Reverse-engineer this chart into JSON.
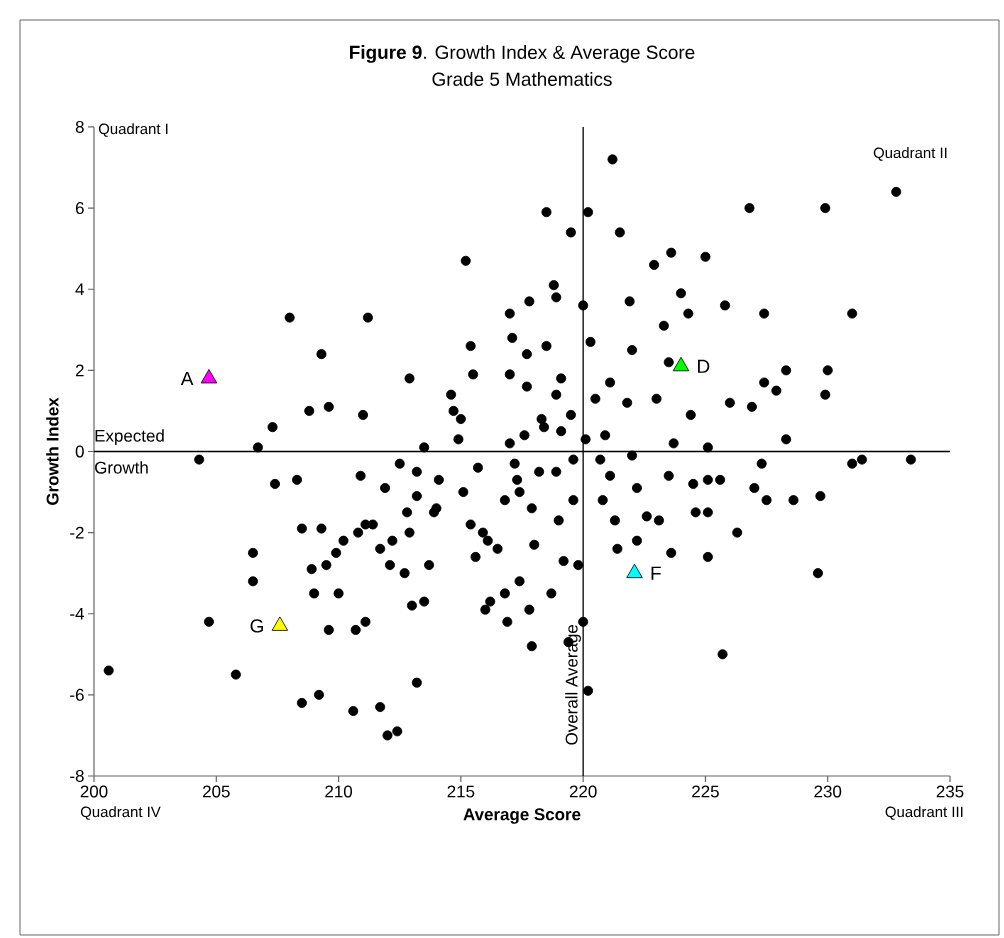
{
  "chart_data": {
    "type": "scatter",
    "title": "**Figure 9**. Growth Index & Average Score",
    "subtitle": "Grade 5 Mathematics",
    "xlabel": "Average Score",
    "ylabel": "Growth Index",
    "xlim": [
      200,
      235
    ],
    "xticks": [
      200,
      205,
      210,
      215,
      220,
      225,
      230,
      235
    ],
    "ylim": [
      -8,
      8
    ],
    "yticks": [
      -8,
      -6,
      -4,
      -2,
      0,
      2,
      4,
      6,
      8
    ],
    "series": [
      {
        "marker": "circle",
        "color": "#000000",
        "x": [
          200.6,
          204.3,
          204.7,
          205.8,
          206.7,
          206.5,
          206.5,
          207.3,
          207.4,
          208.0,
          208.3,
          208.5,
          208.5,
          208.8,
          209.0,
          208.9,
          209.3,
          209.3,
          209.2,
          209.5,
          209.6,
          209.6,
          209.9,
          210.0,
          210.2,
          210.6,
          210.7,
          210.8,
          210.9,
          211.1,
          211.1,
          211.2,
          211.0,
          211.4,
          211.7,
          211.7,
          211.9,
          212.0,
          212.1,
          212.2,
          212.4,
          212.5,
          212.7,
          212.9,
          212.8,
          212.9,
          213.0,
          213.2,
          213.2,
          213.2,
          213.5,
          213.7,
          213.5,
          213.9,
          214.1,
          214.0,
          214.6,
          214.7,
          214.9,
          215.0,
          215.2,
          215.4,
          215.5,
          215.1,
          215.4,
          215.7,
          215.6,
          215.9,
          216.0,
          216.1,
          216.2,
          216.5,
          216.8,
          216.8,
          216.9,
          217.0,
          217.0,
          217.0,
          217.1,
          217.2,
          217.3,
          217.4,
          217.4,
          217.6,
          217.7,
          217.7,
          217.8,
          217.9,
          217.9,
          217.8,
          218.0,
          218.2,
          218.3,
          218.4,
          218.5,
          218.5,
          218.7,
          218.8,
          218.9,
          218.9,
          218.9,
          219.0,
          219.1,
          219.1,
          219.2,
          219.4,
          219.5,
          219.5,
          219.6,
          219.8,
          219.6,
          220.0,
          220.0,
          220.1,
          220.2,
          220.2,
          220.3,
          220.5,
          220.7,
          220.8,
          221.2,
          220.9,
          221.1,
          221.1,
          221.3,
          221.5,
          221.4,
          221.8,
          221.9,
          222.0,
          222.0,
          222.2,
          222.2,
          222.6,
          222.9,
          223.0,
          223.1,
          223.3,
          223.5,
          223.6,
          223.5,
          223.6,
          223.7,
          224.0,
          224.3,
          224.4,
          224.5,
          224.6,
          225.0,
          225.1,
          225.1,
          225.1,
          225.1,
          225.6,
          225.8,
          225.7,
          226.0,
          226.3,
          226.8,
          226.9,
          227.0,
          227.3,
          227.4,
          227.4,
          227.5,
          227.9,
          228.3,
          228.3,
          228.6,
          229.9,
          229.9,
          230.0,
          229.6,
          229.7,
          231.0,
          231.0,
          231.4,
          232.8,
          233.4
        ],
        "values": [
          -5.4,
          -0.2,
          -4.2,
          -5.5,
          0.1,
          -2.5,
          -3.2,
          0.6,
          -0.8,
          3.3,
          -0.7,
          -1.9,
          -6.2,
          1.0,
          -3.5,
          -2.9,
          2.4,
          -1.9,
          -6.0,
          -2.8,
          1.1,
          -4.4,
          -2.5,
          -3.5,
          -2.2,
          -6.4,
          -4.4,
          -2.0,
          -0.6,
          -4.2,
          -1.8,
          3.3,
          0.9,
          -1.8,
          -6.3,
          -2.4,
          -0.9,
          -7.0,
          -2.8,
          -2.2,
          -6.9,
          -0.3,
          -3.0,
          1.8,
          -1.5,
          -2.0,
          -3.8,
          -1.1,
          -5.7,
          -0.5,
          0.1,
          -2.8,
          -3.7,
          -1.5,
          -0.7,
          -1.4,
          1.4,
          1.0,
          0.3,
          0.8,
          4.7,
          2.6,
          1.9,
          -1.0,
          -1.8,
          -0.4,
          -2.6,
          -2.0,
          -3.9,
          -2.2,
          -3.7,
          -2.4,
          -1.2,
          -3.5,
          -4.2,
          1.9,
          0.2,
          3.4,
          2.8,
          -0.3,
          -0.7,
          -1.0,
          -3.2,
          0.4,
          1.6,
          2.4,
          3.7,
          -1.4,
          -4.8,
          -3.9,
          -2.3,
          -0.5,
          0.8,
          0.6,
          5.9,
          2.6,
          -3.5,
          4.1,
          3.8,
          1.4,
          -0.5,
          -1.7,
          1.8,
          0.5,
          -2.7,
          -4.7,
          5.4,
          0.9,
          -1.2,
          -2.8,
          -0.2,
          3.6,
          -4.2,
          0.3,
          5.9,
          -5.9,
          2.7,
          1.3,
          -0.2,
          -1.2,
          7.2,
          0.4,
          1.7,
          -0.6,
          -1.7,
          5.4,
          -2.4,
          1.2,
          3.7,
          2.5,
          -0.1,
          -0.9,
          -2.2,
          -1.6,
          4.6,
          1.3,
          -1.7,
          3.1,
          2.2,
          4.9,
          -0.6,
          -2.5,
          0.2,
          3.9,
          3.4,
          0.9,
          -0.8,
          -1.5,
          4.8,
          0.1,
          -0.7,
          -1.5,
          -2.6,
          -0.7,
          3.6,
          -5.0,
          1.2,
          -2.0,
          6.0,
          1.1,
          -0.9,
          -0.3,
          3.4,
          1.7,
          -1.2,
          1.5,
          0.3,
          2.0,
          -1.2,
          6.0,
          1.4,
          2.0,
          -3.0,
          -1.1,
          3.4,
          -0.3,
          -0.2,
          6.4,
          -0.2
        ]
      },
      {
        "marker": "triangle",
        "name": "A",
        "color": "#ff00ff",
        "x": [
          204.7
        ],
        "values": [
          1.8
        ]
      },
      {
        "marker": "triangle",
        "name": "D",
        "color": "#00ff00",
        "x": [
          224.0
        ],
        "values": [
          2.1
        ]
      },
      {
        "marker": "triangle",
        "name": "F",
        "color": "#00ffff",
        "x": [
          222.1
        ],
        "values": [
          -3.0
        ]
      },
      {
        "marker": "triangle",
        "name": "G",
        "color": "#ffff00",
        "x": [
          207.6
        ],
        "values": [
          -4.3
        ]
      }
    ],
    "ref_lines": [
      {
        "axis": "y",
        "value": 0,
        "label": "Expected Growth",
        "color": "#000000"
      },
      {
        "axis": "x",
        "value": 220,
        "label": "Overall Average",
        "color": "#000000"
      }
    ],
    "annotations": [
      "Quadrant I",
      "Quadrant II",
      "Quadrant III",
      "Quadrant IV"
    ]
  }
}
